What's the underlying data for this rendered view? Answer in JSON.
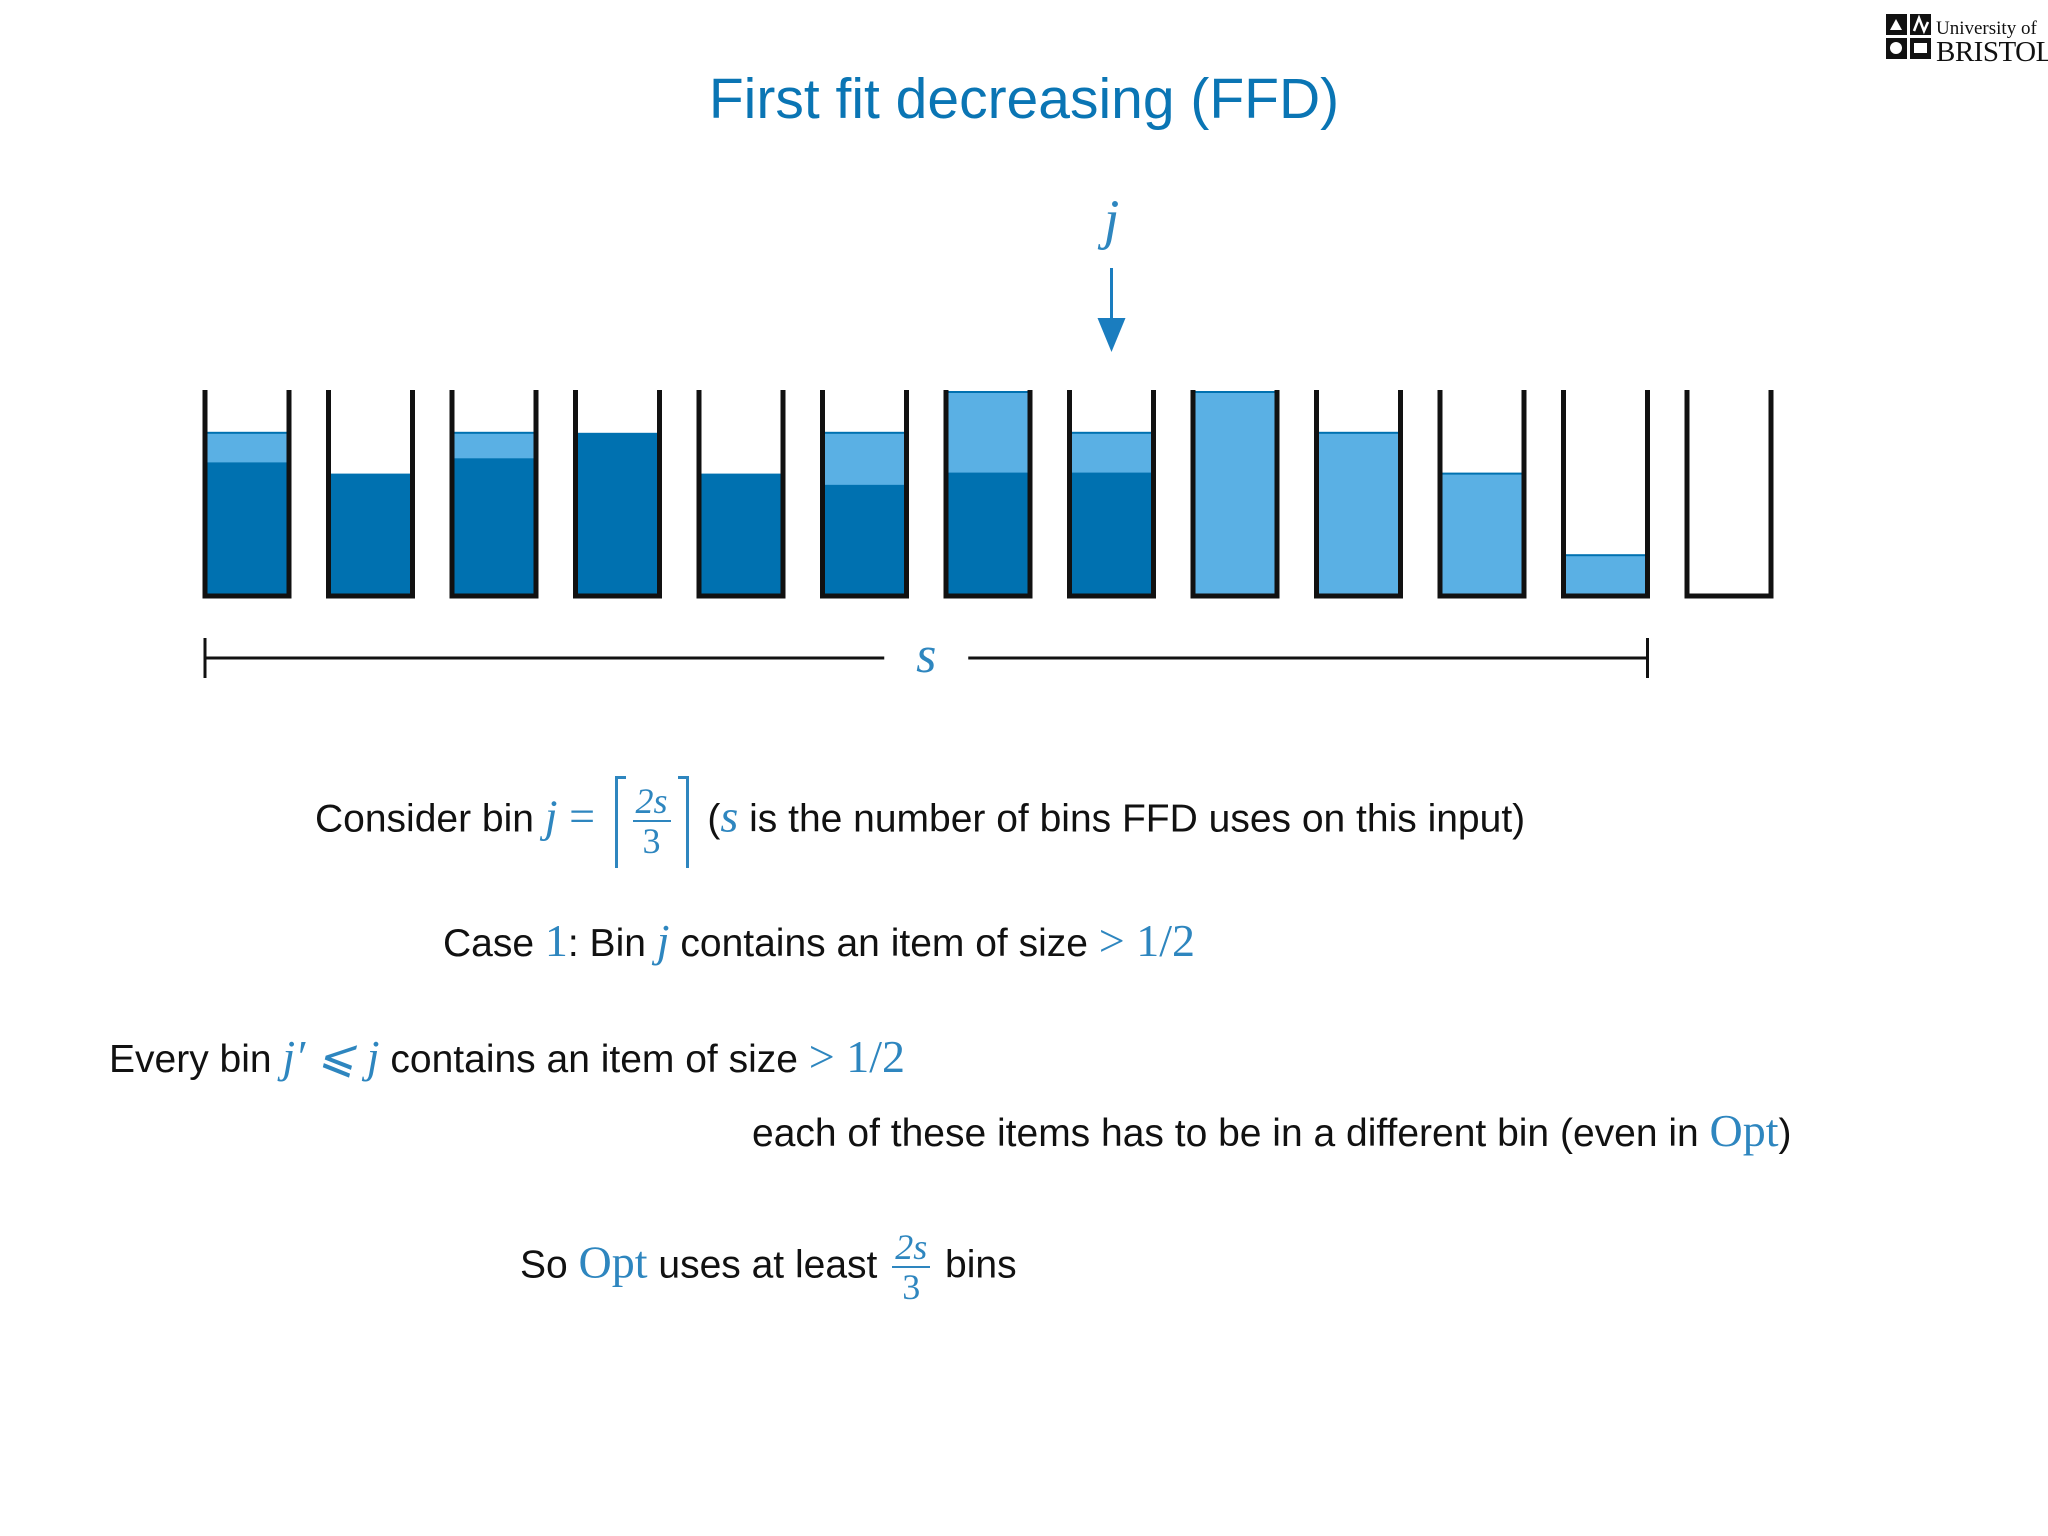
{
  "slide": {
    "title": "First fit decreasing (FFD)",
    "logo": {
      "line1": "University of",
      "line2": "BRISTOL"
    }
  },
  "diagram": {
    "pointer_label": "j",
    "span_label": "s",
    "colors": {
      "dark": "#0071B0",
      "light": "#5AB0E4",
      "outline": "#111111",
      "accent": "#1A7DBF"
    },
    "bins": [
      {
        "dark": 0.65,
        "light": 0.15
      },
      {
        "dark": 0.6,
        "light": 0.0
      },
      {
        "dark": 0.67,
        "light": 0.13
      },
      {
        "dark": 0.8,
        "light": 0.0
      },
      {
        "dark": 0.6,
        "light": 0.0
      },
      {
        "dark": 0.54,
        "light": 0.26
      },
      {
        "dark": 0.6,
        "light": 0.4
      },
      {
        "dark": 0.6,
        "light": 0.2
      },
      {
        "dark": 0.0,
        "light": 1.0
      },
      {
        "dark": 0.0,
        "light": 0.8
      },
      {
        "dark": 0.0,
        "light": 0.6
      },
      {
        "dark": 0.0,
        "light": 0.2
      },
      {
        "dark": 0.0,
        "light": 0.0
      }
    ],
    "pointer_bin_number": 8,
    "span_bin_count": 12
  },
  "text": {
    "consider": {
      "prefix": "Consider bin ",
      "var_j": "j",
      "eq": " = ",
      "frac_num": "2s",
      "frac_den": "3",
      "paren_open": " (",
      "var_s": "s",
      "suffix": " is the number of bins FFD uses on this input)"
    },
    "case1": {
      "prefix": "Case ",
      "num": "1",
      "mid": ": Bin ",
      "var_j": "j",
      "mid2": " contains an item of size ",
      "expr": "> 1/2"
    },
    "every": {
      "prefix": "Every bin ",
      "var": "j′ ⩽ j",
      "mid": " contains an item of size ",
      "expr": "> 1/2"
    },
    "each": {
      "prefix": "each of these items has to be in a different bin (even in ",
      "opt": "Opt",
      "suffix": ")"
    },
    "so": {
      "prefix": "So ",
      "opt": "Opt",
      "mid": " uses at least ",
      "frac_num": "2s",
      "frac_den": "3",
      "suffix": " bins"
    }
  }
}
